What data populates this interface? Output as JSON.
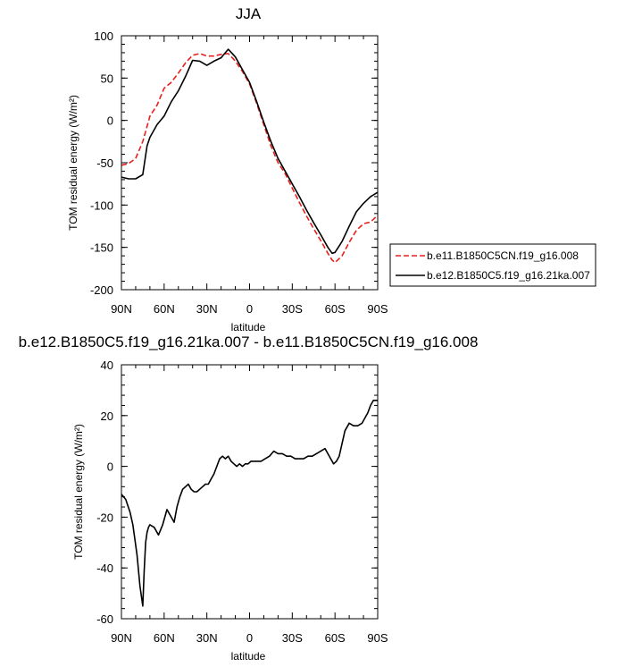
{
  "chart_data": [
    {
      "type": "line",
      "title": "JJA",
      "xlabel": "latitude",
      "ylabel": "TOM residual energy (W/m²)",
      "xlim": [
        90,
        -90
      ],
      "ylim": [
        -200,
        100
      ],
      "xticks": [
        90,
        60,
        30,
        0,
        -30,
        -60,
        -90
      ],
      "xtick_labels": [
        "90N",
        "60N",
        "30N",
        "0",
        "30S",
        "60S",
        "90S"
      ],
      "yticks": [
        -200,
        -150,
        -100,
        -50,
        0,
        50,
        100
      ],
      "legend_position": "outside-right",
      "series": [
        {
          "name": "b.e11.B1850C5CN.f19_g16.008",
          "color": "#e8201c",
          "dash": "dashed",
          "x": [
            90,
            85,
            80,
            75,
            70,
            65,
            60,
            55,
            50,
            45,
            40,
            35,
            30,
            25,
            20,
            15,
            10,
            5,
            0,
            -5,
            -10,
            -15,
            -20,
            -25,
            -30,
            -35,
            -40,
            -45,
            -50,
            -55,
            -58,
            -60,
            -65,
            -70,
            -75,
            -80,
            -85,
            -90
          ],
          "y": [
            -53,
            -51,
            -45,
            -25,
            5,
            18,
            38,
            45,
            56,
            68,
            77,
            79,
            76,
            76,
            78,
            79,
            70,
            58,
            43,
            20,
            -5,
            -30,
            -50,
            -63,
            -80,
            -97,
            -113,
            -128,
            -142,
            -157,
            -165,
            -168,
            -160,
            -144,
            -130,
            -122,
            -120,
            -112
          ]
        },
        {
          "name": "b.e12.B1850C5.f19_g16.21ka.007",
          "color": "#000000",
          "dash": "solid",
          "x": [
            90,
            85,
            80,
            75,
            72,
            70,
            65,
            60,
            55,
            50,
            45,
            40,
            35,
            30,
            25,
            20,
            15,
            10,
            5,
            0,
            -5,
            -10,
            -15,
            -20,
            -25,
            -30,
            -35,
            -40,
            -45,
            -50,
            -55,
            -58,
            -60,
            -65,
            -70,
            -75,
            -80,
            -85,
            -90
          ],
          "y": [
            -67,
            -69,
            -69,
            -64,
            -30,
            -20,
            -5,
            5,
            22,
            35,
            52,
            71,
            70,
            65,
            70,
            74,
            84,
            75,
            60,
            45,
            22,
            -2,
            -25,
            -45,
            -60,
            -75,
            -90,
            -106,
            -121,
            -135,
            -150,
            -157,
            -156,
            -143,
            -125,
            -108,
            -98,
            -90,
            -85
          ]
        }
      ]
    },
    {
      "type": "line",
      "title": "b.e12.B1850C5.f19_g16.21ka.007 - b.e11.B1850C5CN.f19_g16.008",
      "xlabel": "latitude",
      "ylabel": "TOM residual energy (W/m²)",
      "xlim": [
        90,
        -90
      ],
      "ylim": [
        -60,
        40
      ],
      "xticks": [
        90,
        60,
        30,
        0,
        -30,
        -60,
        -90
      ],
      "xtick_labels": [
        "90N",
        "60N",
        "30N",
        "0",
        "30S",
        "60S",
        "90S"
      ],
      "yticks": [
        -60,
        -40,
        -20,
        0,
        20,
        40
      ],
      "series": [
        {
          "color": "#000000",
          "dash": "solid",
          "x": [
            90,
            87,
            84,
            82,
            79,
            77,
            75,
            74,
            73,
            72,
            71,
            70,
            67,
            64,
            61,
            58,
            55,
            53,
            51,
            49,
            47,
            45,
            43,
            41,
            39,
            37,
            35,
            33,
            31,
            29,
            27,
            25,
            23,
            21,
            19,
            17,
            15,
            13,
            11,
            9,
            7,
            5,
            3,
            1,
            -1,
            -3,
            -5,
            -8,
            -11,
            -14,
            -17,
            -20,
            -23,
            -26,
            -29,
            -32,
            -35,
            -38,
            -41,
            -44,
            -47,
            -50,
            -53,
            -55,
            -57,
            -59,
            -61,
            -63,
            -65,
            -67,
            -70,
            -73,
            -76,
            -79,
            -81,
            -83,
            -85,
            -87,
            -90
          ],
          "y": [
            -11,
            -13,
            -18,
            -23,
            -35,
            -47,
            -55,
            -41,
            -30,
            -26,
            -24,
            -23,
            -24,
            -27,
            -23,
            -17,
            -20,
            -22,
            -16,
            -12,
            -9,
            -8,
            -7,
            -9,
            -10,
            -10,
            -9,
            -8,
            -7,
            -7,
            -5,
            -3,
            0,
            3,
            4,
            3,
            4,
            2,
            1,
            0,
            1,
            0,
            1,
            1,
            2,
            2,
            2,
            2,
            3,
            4,
            6,
            5,
            5,
            4,
            4,
            3,
            3,
            3,
            4,
            4,
            5,
            6,
            7,
            5,
            3,
            1,
            2,
            4,
            9,
            14,
            17,
            16,
            16,
            17,
            19,
            21,
            24,
            26,
            26
          ]
        }
      ]
    }
  ]
}
